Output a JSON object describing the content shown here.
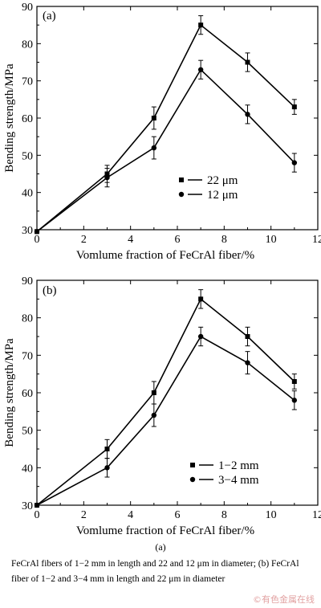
{
  "chart_data": [
    {
      "type": "line",
      "panel_label": "(a)",
      "xlabel": "Vomlume fraction of FeCrAl fiber/%",
      "ylabel": "Bending strength/MPa",
      "xlim": [
        0,
        12
      ],
      "ylim": [
        30,
        90
      ],
      "x_ticks": [
        0,
        2,
        4,
        6,
        8,
        10,
        12
      ],
      "y_ticks": [
        30,
        40,
        50,
        60,
        70,
        80,
        90
      ],
      "grid": false,
      "legend_position": "lower-center",
      "series": [
        {
          "name": "22 μm",
          "marker": "square",
          "x": [
            0,
            3,
            5,
            7,
            9,
            11
          ],
          "y": [
            29.5,
            45,
            60,
            85,
            75,
            63
          ],
          "err": [
            0,
            2.3,
            3,
            2.5,
            2.5,
            2
          ]
        },
        {
          "name": "12 μm",
          "marker": "circle",
          "x": [
            0,
            3,
            5,
            7,
            9,
            11
          ],
          "y": [
            29.5,
            44,
            52,
            73,
            61,
            48
          ],
          "err": [
            0,
            2.5,
            3,
            2.5,
            2.5,
            2.5
          ]
        }
      ]
    },
    {
      "type": "line",
      "panel_label": "(b)",
      "xlabel": "Vomlume fraction of FeCrAl fiber/%",
      "ylabel": "Bending strength/MPa",
      "xlim": [
        0,
        12
      ],
      "ylim": [
        30,
        90
      ],
      "x_ticks": [
        0,
        2,
        4,
        6,
        8,
        10,
        12
      ],
      "y_ticks": [
        30,
        40,
        50,
        60,
        70,
        80,
        90
      ],
      "grid": false,
      "legend_position": "lower-center",
      "series": [
        {
          "name": "1−2 mm",
          "marker": "square",
          "x": [
            0,
            3,
            5,
            7,
            9,
            11
          ],
          "y": [
            30,
            45,
            60,
            85,
            75,
            63
          ],
          "err": [
            0,
            2.5,
            3,
            2.5,
            2.5,
            2
          ]
        },
        {
          "name": "3−4 mm",
          "marker": "circle",
          "x": [
            0,
            3,
            5,
            7,
            9,
            11
          ],
          "y": [
            30,
            40,
            54,
            75,
            68,
            58
          ],
          "err": [
            0,
            2.5,
            3,
            2.5,
            3,
            2.5
          ]
        }
      ]
    }
  ],
  "caption_fig_label": "(a)",
  "caption": "FeCrAl fibers of 1−2 mm in length and 22 and 12 μm in diameter; (b) FeCrAl fiber of 1−2 and 3−4 mm in length and 22 μm in diameter",
  "watermark": "©有色金属在线"
}
